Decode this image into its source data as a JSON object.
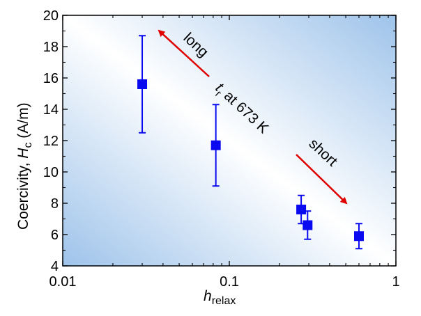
{
  "chart_data": {
    "type": "scatter",
    "title": "",
    "x_scale": "log",
    "xlim": [
      0.01,
      1
    ],
    "ylim": [
      4,
      20
    ],
    "x_ticks": [
      0.01,
      0.1,
      1
    ],
    "x_tick_labels": [
      "0.01",
      "0.1",
      "1"
    ],
    "y_ticks": [
      4,
      6,
      8,
      10,
      12,
      14,
      16,
      18,
      20
    ],
    "y_tick_labels": [
      "4",
      "6",
      "8",
      "10",
      "12",
      "14",
      "16",
      "18",
      "20"
    ],
    "xlabel": {
      "main": "h",
      "sub": "relax"
    },
    "ylabel": {
      "main": "Coercivity, ",
      "italic": "H",
      "sub": "c",
      "unit": " (A/m)"
    },
    "grid": false,
    "series": [
      {
        "marker": "square",
        "color": "#0a0af0",
        "points": [
          {
            "x": 0.03,
            "y": 15.6,
            "err": 3.1
          },
          {
            "x": 0.083,
            "y": 11.7,
            "err": 2.6
          },
          {
            "x": 0.27,
            "y": 7.6,
            "err": 0.9
          },
          {
            "x": 0.295,
            "y": 6.6,
            "err": 0.9
          },
          {
            "x": 0.6,
            "y": 5.9,
            "err": 0.8
          }
        ]
      }
    ],
    "annotations": {
      "long": "long",
      "short": "short",
      "tr_main": "t",
      "tr_sub": "r",
      "tr_rest": " at 673 K",
      "arrow_color": "#e00000"
    },
    "background_gradient": [
      "#9ec3ea",
      "#ffffff",
      "#9ec3ea"
    ]
  }
}
